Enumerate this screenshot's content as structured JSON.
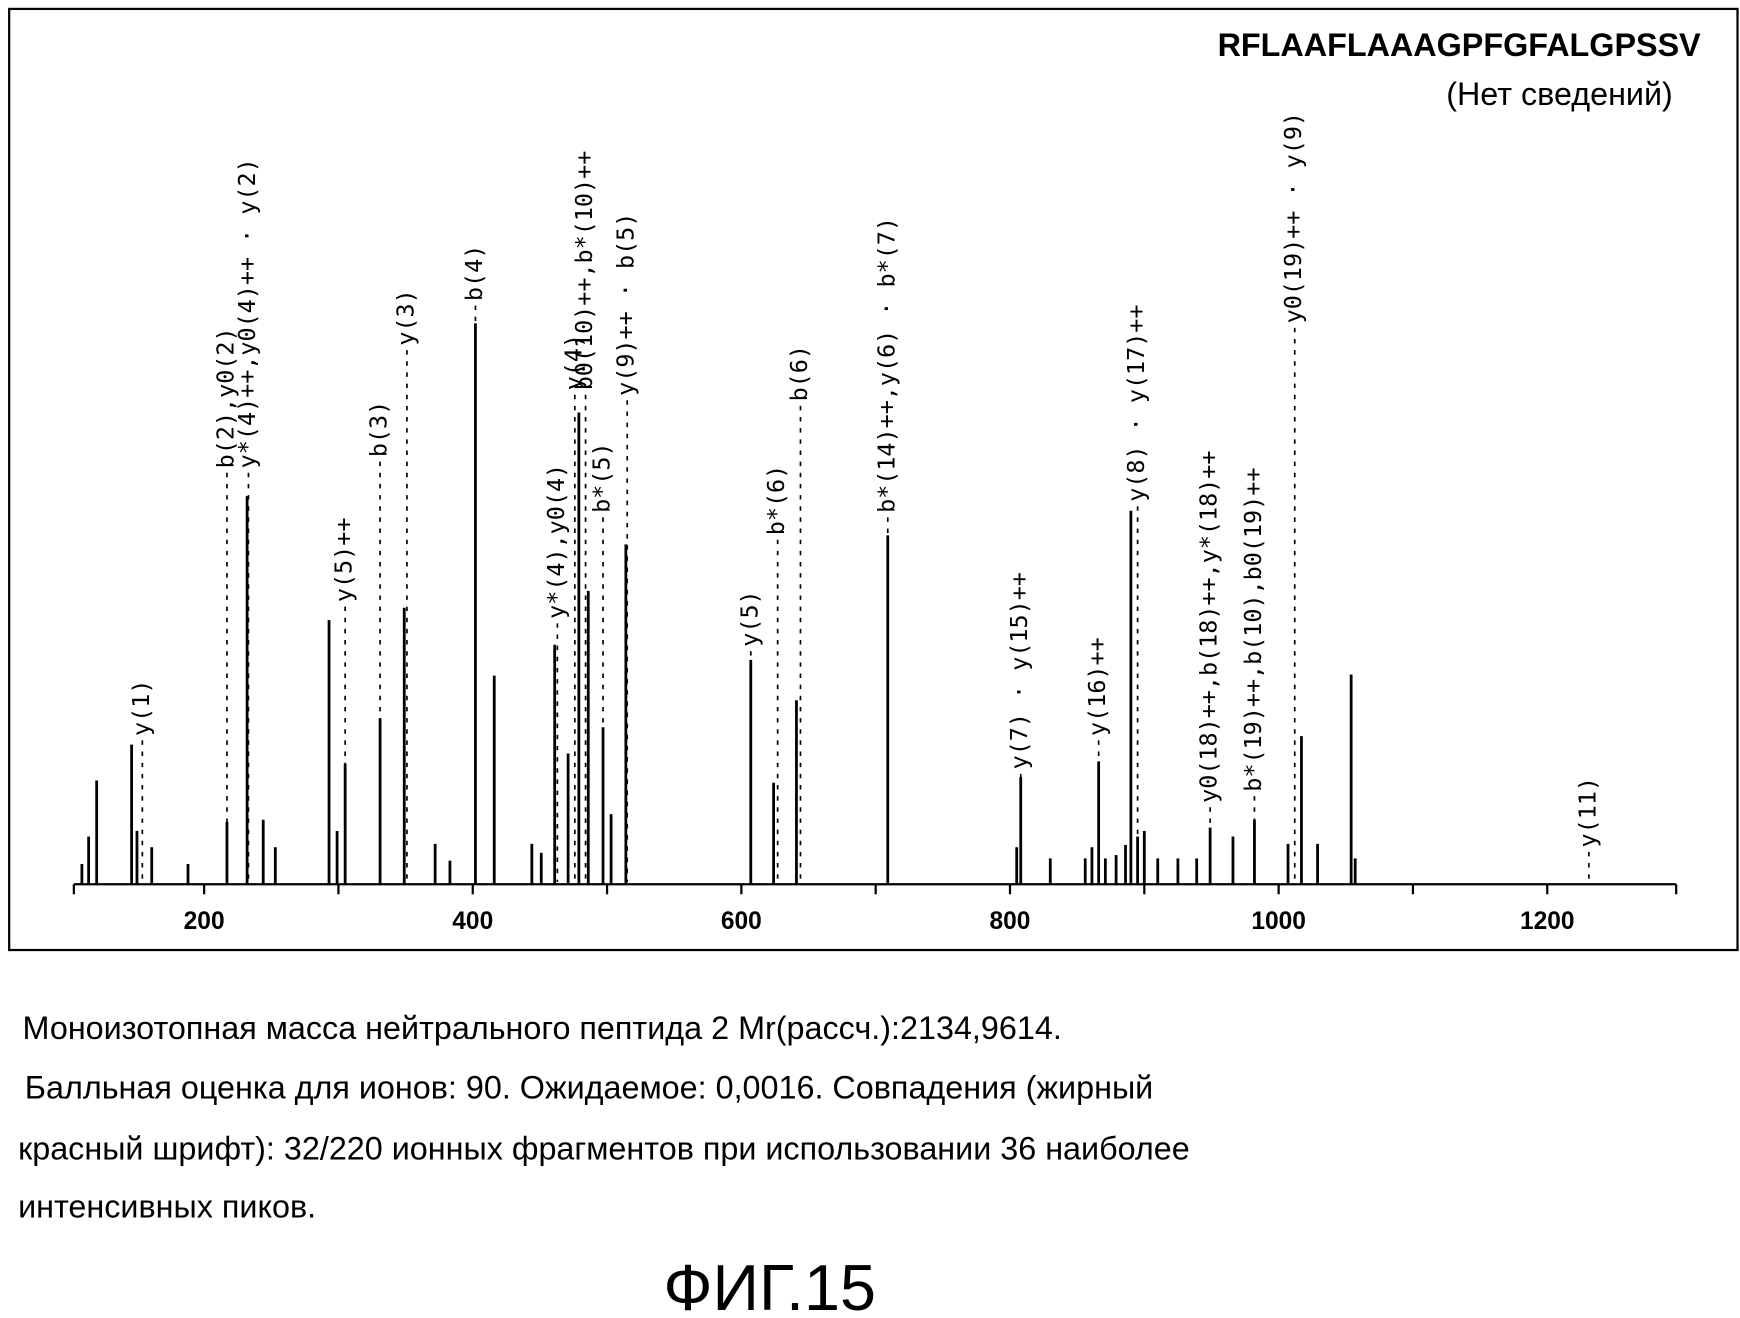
{
  "chart_data": {
    "type": "spectrum",
    "title": "RFLAAFLAAAGPFGFALGPSSV",
    "subtitle": "(Нет сведений)",
    "color": "#000000",
    "x": [
      109,
      114,
      120,
      146,
      150,
      161,
      188,
      217,
      232,
      244,
      253,
      293,
      299,
      305,
      331,
      349,
      372,
      383,
      402,
      416,
      444,
      451,
      461,
      471,
      479,
      486,
      497,
      503,
      514,
      607,
      624,
      641,
      709,
      805,
      808,
      830,
      856,
      861,
      866,
      871,
      879,
      886,
      890,
      895,
      900,
      910,
      925,
      939,
      949,
      966,
      982,
      1007,
      1017,
      1029,
      1054,
      1057
    ],
    "values": [
      3.6,
      8.5,
      18.5,
      24.9,
      9.5,
      6.6,
      3.6,
      11.1,
      69.2,
      11.5,
      6.6,
      47.1,
      9.5,
      21.5,
      29.6,
      49.3,
      7.2,
      4.2,
      100,
      37.2,
      7.2,
      5.6,
      42.7,
      23.3,
      84.1,
      52.3,
      28,
      12.5,
      60.6,
      40,
      18.1,
      32.8,
      62.2,
      6.6,
      19.1,
      4.6,
      4.6,
      6.6,
      21.9,
      4.6,
      5.2,
      7,
      66.6,
      8.5,
      9.5,
      4.6,
      4.6,
      4.6,
      10.1,
      8.5,
      11.5,
      7.2,
      26.4,
      7.2,
      37.4,
      4.6
    ],
    "xlim": [
      103,
      1296
    ],
    "xticks": [
      200,
      400,
      600,
      800,
      1000,
      1200
    ],
    "xminor_ticks": [
      300,
      500,
      700,
      900,
      1100
    ],
    "ylim": [
      0,
      100
    ],
    "annotations": [
      {
        "x": 154,
        "label": "y(1)"
      },
      {
        "x": 217,
        "label": "b(2),y0(2)"
      },
      {
        "x": 233,
        "label": "y*(4)++,y0(4)++ · y(2)"
      },
      {
        "x": 305,
        "label": "y(5)++"
      },
      {
        "x": 331,
        "label": "b(3)"
      },
      {
        "x": 351,
        "label": "y(3)"
      },
      {
        "x": 402,
        "label": "b(4)"
      },
      {
        "x": 463,
        "label": "y*(4),y0(4)"
      },
      {
        "x": 476,
        "label": "y(4)"
      },
      {
        "x": 484,
        "label": "b0(10)++,b*(10)++"
      },
      {
        "x": 497,
        "label": "b*(5)"
      },
      {
        "x": 515,
        "label": "y(9)++ · b(5)"
      },
      {
        "x": 607,
        "label": "y(5)"
      },
      {
        "x": 627,
        "label": "b*(6)"
      },
      {
        "x": 644,
        "label": "b(6)"
      },
      {
        "x": 709,
        "label": "b*(14)++,y(6) · b*(7)"
      },
      {
        "x": 808,
        "label": "y(7) · y(15)++"
      },
      {
        "x": 866,
        "label": "y(16)++"
      },
      {
        "x": 895,
        "label": "y(8) · y(17)++"
      },
      {
        "x": 949,
        "label": "y0(18)++,b(18)++,y*(18)++"
      },
      {
        "x": 982,
        "label": "b*(19)++,b(10),b0(19)++"
      },
      {
        "x": 1012,
        "label": "y0(19)++ · y(9)"
      },
      {
        "x": 1231,
        "label": "y(11)"
      }
    ]
  },
  "caption": {
    "lines": [
      "Моноизотопная масса нейтрального пептида 2 Mr(рассч.):2134,9614.",
      "Балльная оценка для ионов: 90. Ожидаемое: 0,0016. Совпадения (жирный",
      "красный шрифт): 32/220 ионных фрагментов при использовании 36 наиболее",
      "интенсивных пиков."
    ]
  },
  "figure_label": "ФИГ.15"
}
